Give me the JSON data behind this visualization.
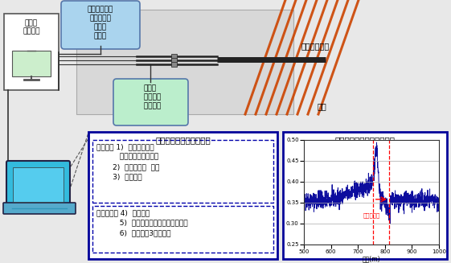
{
  "bg_color": "#e8e8e8",
  "box1_title": "トンネルナビの機能一覧",
  "box2_title": "トンネルナビのパラメータ",
  "sensor_box_text": "油圧センサー\nフィード圧\n回転数\n打撃圧",
  "oil_box_text": "油量計\n  削孔距離\n  削孔速度",
  "data_recorder_text": "データ\nレコーダ",
  "noncore_label": "ノンコア削孔",
  "weak_layer_label": "弱層",
  "fault_zone_label": "断層破砕帯",
  "xlabel": "距離(m)",
  "ylim": [
    0.25,
    0.5
  ],
  "xlim": [
    500,
    1000
  ],
  "yticks": [
    0.25,
    0.3,
    0.35,
    0.4,
    0.45,
    0.5
  ],
  "xticks": [
    500,
    600,
    700,
    800,
    900,
    1000
  ],
  "basic_text_line1": "基本機能 1)  断層破砕帯、",
  "basic_text_line2": "          風化・変質帯の検出",
  "basic_text_line3": "       2)  地山の硬軟  判定",
  "basic_text_line4": "       3)  地山分類",
  "option_text_line1": "オプション 4)  湧水特性",
  "option_text_line2": "          5)  膨張性、押出し性地山の判定",
  "option_text_line3": "          6)  破砕帯の3次元分布"
}
